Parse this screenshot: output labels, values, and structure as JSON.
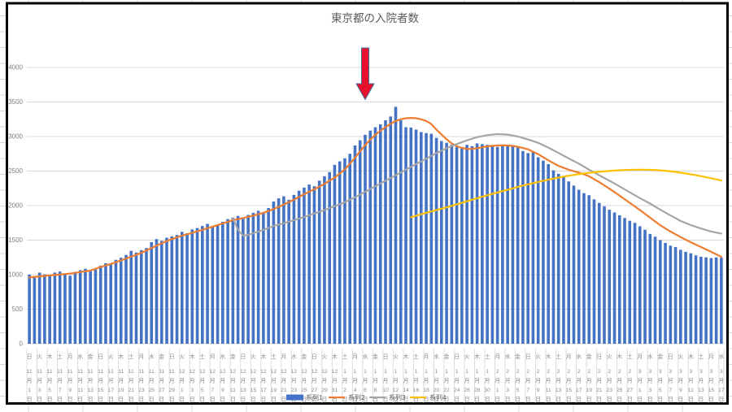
{
  "title": "東京都の入院者数",
  "colors": {
    "bar": "#4472c4",
    "series2": "#ed7d31",
    "series3": "#a5a5a5",
    "series4": "#ffc000",
    "gridline": "#d9d9d9",
    "tick_separator": "#dcdcdc",
    "excel_gridline": "#d8d8d8",
    "axis_text": "#7f7f7f",
    "x_label_text": "#8c8c8c",
    "title_text": "#595959",
    "chart_border": "#000000",
    "arrow_fill": "#e8112d",
    "arrow_stroke": "#41719c"
  },
  "legend": {
    "items": [
      {
        "label": "系列1",
        "marker": "bar",
        "color": "#4472c4"
      },
      {
        "label": "系列2",
        "marker": "line",
        "color": "#ed7d31"
      },
      {
        "label": "系列3",
        "marker": "line",
        "color": "#a5a5a5"
      },
      {
        "label": "系列4",
        "marker": "line",
        "color": "#ffc000"
      }
    ]
  },
  "chart_data": {
    "type": "bar+line",
    "title": "東京都の入院者数",
    "grid": true,
    "legend_position": "bottom",
    "y_axis": {
      "min": 0,
      "max": 4000,
      "tick_step": 500,
      "ticks": [
        0,
        500,
        1000,
        1500,
        2000,
        2500,
        3000,
        3500,
        4000
      ]
    },
    "x_axis": {
      "unit": "day",
      "first": "11月1日",
      "last": "3月17日",
      "label_interval_days": 2,
      "labels": [
        [
          "日",
          11,
          1
        ],
        [
          "火",
          11,
          3
        ],
        [
          "木",
          11,
          5
        ],
        [
          "土",
          11,
          7
        ],
        [
          "月",
          11,
          9
        ],
        [
          "水",
          11,
          11
        ],
        [
          "金",
          11,
          13
        ],
        [
          "日",
          11,
          15
        ],
        [
          "火",
          11,
          17
        ],
        [
          "木",
          11,
          19
        ],
        [
          "土",
          11,
          21
        ],
        [
          "月",
          11,
          23
        ],
        [
          "水",
          11,
          25
        ],
        [
          "金",
          11,
          27
        ],
        [
          "日",
          11,
          29
        ],
        [
          "火",
          12,
          1
        ],
        [
          "木",
          12,
          3
        ],
        [
          "土",
          12,
          5
        ],
        [
          "月",
          12,
          7
        ],
        [
          "水",
          12,
          9
        ],
        [
          "金",
          12,
          11
        ],
        [
          "日",
          12,
          13
        ],
        [
          "火",
          12,
          15
        ],
        [
          "木",
          12,
          17
        ],
        [
          "土",
          12,
          19
        ],
        [
          "月",
          12,
          21
        ],
        [
          "水",
          12,
          23
        ],
        [
          "金",
          12,
          25
        ],
        [
          "日",
          12,
          27
        ],
        [
          "火",
          12,
          29
        ],
        [
          "木",
          12,
          31
        ],
        [
          "土",
          1,
          2
        ],
        [
          "月",
          1,
          4
        ],
        [
          "水",
          1,
          6
        ],
        [
          "金",
          1,
          8
        ],
        [
          "日",
          1,
          10
        ],
        [
          "火",
          1,
          12
        ],
        [
          "木",
          1,
          14
        ],
        [
          "土",
          1,
          16
        ],
        [
          "月",
          1,
          18
        ],
        [
          "水",
          1,
          20
        ],
        [
          "金",
          1,
          22
        ],
        [
          "日",
          1,
          24
        ],
        [
          "火",
          1,
          26
        ],
        [
          "木",
          1,
          28
        ],
        [
          "土",
          1,
          30
        ],
        [
          "月",
          2,
          1
        ],
        [
          "水",
          2,
          3
        ],
        [
          "金",
          2,
          5
        ],
        [
          "日",
          2,
          7
        ],
        [
          "火",
          2,
          9
        ],
        [
          "木",
          2,
          11
        ],
        [
          "土",
          2,
          13
        ],
        [
          "月",
          2,
          15
        ],
        [
          "水",
          2,
          17
        ],
        [
          "金",
          2,
          19
        ],
        [
          "日",
          2,
          21
        ],
        [
          "火",
          2,
          23
        ],
        [
          "木",
          2,
          25
        ],
        [
          "土",
          2,
          27
        ],
        [
          "月",
          3,
          1
        ],
        [
          "水",
          3,
          3
        ],
        [
          "金",
          3,
          5
        ],
        [
          "日",
          3,
          7
        ],
        [
          "火",
          3,
          9
        ],
        [
          "木",
          3,
          11
        ],
        [
          "土",
          3,
          13
        ],
        [
          "月",
          3,
          15
        ],
        [
          "水",
          3,
          17
        ]
      ]
    },
    "series": [
      {
        "name": "系列1",
        "type": "bar",
        "color": "#4472c4",
        "values": [
          1000,
          975,
          1030,
          1005,
          990,
          1030,
          1045,
          1000,
          985,
          1040,
          1065,
          1085,
          1050,
          1075,
          1130,
          1165,
          1150,
          1215,
          1245,
          1285,
          1345,
          1320,
          1355,
          1385,
          1470,
          1515,
          1490,
          1535,
          1555,
          1575,
          1620,
          1600,
          1655,
          1675,
          1705,
          1735,
          1690,
          1725,
          1765,
          1805,
          1825,
          1850,
          1830,
          1865,
          1895,
          1925,
          1905,
          1965,
          2060,
          2105,
          2135,
          2085,
          2155,
          2215,
          2260,
          2305,
          2280,
          2360,
          2425,
          2485,
          2590,
          2640,
          2685,
          2750,
          2870,
          2945,
          3025,
          3085,
          3135,
          3175,
          3235,
          3290,
          3430,
          3235,
          3135,
          3130,
          3100,
          3065,
          3050,
          3040,
          2980,
          2935,
          2910,
          2880,
          2850,
          2845,
          2880,
          2860,
          2900,
          2890,
          2880,
          2875,
          2850,
          2870,
          2880,
          2860,
          2840,
          2790,
          2760,
          2780,
          2700,
          2650,
          2600,
          2510,
          2460,
          2420,
          2350,
          2290,
          2230,
          2180,
          2150,
          2090,
          2040,
          1990,
          1940,
          1900,
          1860,
          1820,
          1780,
          1750,
          1700,
          1650,
          1590,
          1550,
          1500,
          1460,
          1420,
          1400,
          1360,
          1330,
          1310,
          1280,
          1260,
          1250,
          1240,
          1250,
          1245
        ]
      },
      {
        "name": "系列2",
        "type": "line",
        "color": "#ed7d31",
        "points": [
          [
            0,
            960
          ],
          [
            4,
            990
          ],
          [
            8,
            1015
          ],
          [
            12,
            1060
          ],
          [
            14,
            1110
          ],
          [
            16,
            1155
          ],
          [
            18,
            1205
          ],
          [
            20,
            1260
          ],
          [
            22,
            1315
          ],
          [
            24,
            1385
          ],
          [
            26,
            1455
          ],
          [
            28,
            1515
          ],
          [
            30,
            1565
          ],
          [
            32,
            1605
          ],
          [
            34,
            1650
          ],
          [
            36,
            1695
          ],
          [
            38,
            1740
          ],
          [
            40,
            1790
          ],
          [
            42,
            1820
          ],
          [
            44,
            1855
          ],
          [
            46,
            1895
          ],
          [
            48,
            1950
          ],
          [
            50,
            2015
          ],
          [
            52,
            2085
          ],
          [
            54,
            2165
          ],
          [
            56,
            2235
          ],
          [
            58,
            2315
          ],
          [
            60,
            2405
          ],
          [
            62,
            2525
          ],
          [
            63,
            2605
          ],
          [
            64,
            2695
          ],
          [
            65,
            2785
          ],
          [
            66,
            2875
          ],
          [
            67,
            2955
          ],
          [
            68,
            3025
          ],
          [
            69,
            3085
          ],
          [
            70,
            3135
          ],
          [
            71,
            3185
          ],
          [
            72,
            3225
          ],
          [
            73,
            3250
          ],
          [
            74,
            3265
          ],
          [
            75,
            3270
          ],
          [
            76,
            3265
          ],
          [
            77,
            3250
          ],
          [
            78,
            3225
          ],
          [
            79,
            3180
          ],
          [
            80,
            3100
          ],
          [
            81,
            3030
          ],
          [
            82,
            2960
          ],
          [
            83,
            2900
          ],
          [
            84,
            2860
          ],
          [
            85,
            2835
          ],
          [
            86,
            2820
          ],
          [
            87,
            2822
          ],
          [
            88,
            2832
          ],
          [
            89,
            2845
          ],
          [
            90,
            2858
          ],
          [
            91,
            2866
          ],
          [
            92,
            2871
          ],
          [
            93,
            2873
          ],
          [
            94,
            2870
          ],
          [
            95,
            2864
          ],
          [
            96,
            2852
          ],
          [
            98,
            2815
          ],
          [
            100,
            2745
          ],
          [
            102,
            2655
          ],
          [
            104,
            2575
          ],
          [
            106,
            2520
          ],
          [
            108,
            2478
          ],
          [
            110,
            2425
          ],
          [
            112,
            2340
          ],
          [
            114,
            2245
          ],
          [
            116,
            2145
          ],
          [
            118,
            2040
          ],
          [
            120,
            1935
          ],
          [
            122,
            1825
          ],
          [
            124,
            1715
          ],
          [
            126,
            1625
          ],
          [
            128,
            1545
          ],
          [
            130,
            1470
          ],
          [
            132,
            1400
          ],
          [
            134,
            1330
          ],
          [
            135,
            1295
          ],
          [
            136,
            1258
          ]
        ]
      },
      {
        "name": "系列3",
        "type": "line",
        "color": "#a5a5a5",
        "points": [
          [
            40,
            1820
          ],
          [
            41,
            1650
          ],
          [
            42,
            1565
          ],
          [
            43,
            1575
          ],
          [
            44,
            1600
          ],
          [
            46,
            1650
          ],
          [
            48,
            1705
          ],
          [
            50,
            1745
          ],
          [
            52,
            1790
          ],
          [
            54,
            1835
          ],
          [
            56,
            1885
          ],
          [
            58,
            1935
          ],
          [
            60,
            1990
          ],
          [
            62,
            2050
          ],
          [
            64,
            2120
          ],
          [
            66,
            2200
          ],
          [
            68,
            2280
          ],
          [
            70,
            2360
          ],
          [
            72,
            2440
          ],
          [
            74,
            2520
          ],
          [
            76,
            2600
          ],
          [
            78,
            2680
          ],
          [
            80,
            2760
          ],
          [
            82,
            2830
          ],
          [
            84,
            2890
          ],
          [
            86,
            2945
          ],
          [
            88,
            2990
          ],
          [
            90,
            3020
          ],
          [
            92,
            3035
          ],
          [
            94,
            3028
          ],
          [
            96,
            3000
          ],
          [
            98,
            2958
          ],
          [
            100,
            2908
          ],
          [
            102,
            2840
          ],
          [
            104,
            2762
          ],
          [
            106,
            2682
          ],
          [
            108,
            2608
          ],
          [
            110,
            2520
          ],
          [
            112,
            2440
          ],
          [
            114,
            2360
          ],
          [
            116,
            2278
          ],
          [
            118,
            2192
          ],
          [
            120,
            2108
          ],
          [
            122,
            2030
          ],
          [
            124,
            1940
          ],
          [
            126,
            1858
          ],
          [
            128,
            1778
          ],
          [
            130,
            1718
          ],
          [
            132,
            1668
          ],
          [
            134,
            1625
          ],
          [
            136,
            1595
          ]
        ]
      },
      {
        "name": "系列4",
        "type": "line",
        "color": "#ffc000",
        "points": [
          [
            75,
            1830
          ],
          [
            77,
            1875
          ],
          [
            79,
            1915
          ],
          [
            81,
            1955
          ],
          [
            83,
            1995
          ],
          [
            85,
            2040
          ],
          [
            87,
            2085
          ],
          [
            89,
            2130
          ],
          [
            91,
            2170
          ],
          [
            93,
            2210
          ],
          [
            95,
            2250
          ],
          [
            97,
            2290
          ],
          [
            99,
            2325
          ],
          [
            101,
            2360
          ],
          [
            103,
            2390
          ],
          [
            105,
            2420
          ],
          [
            107,
            2445
          ],
          [
            109,
            2465
          ],
          [
            111,
            2482
          ],
          [
            113,
            2495
          ],
          [
            115,
            2507
          ],
          [
            117,
            2515
          ],
          [
            119,
            2520
          ],
          [
            121,
            2520
          ],
          [
            123,
            2515
          ],
          [
            125,
            2505
          ],
          [
            127,
            2488
          ],
          [
            129,
            2465
          ],
          [
            131,
            2440
          ],
          [
            133,
            2410
          ],
          [
            135,
            2380
          ],
          [
            136,
            2362
          ]
        ]
      }
    ],
    "annotation": {
      "shape": "down-arrow",
      "day_index": 66,
      "fill": "#e8112d",
      "stroke": "#41719c"
    }
  }
}
